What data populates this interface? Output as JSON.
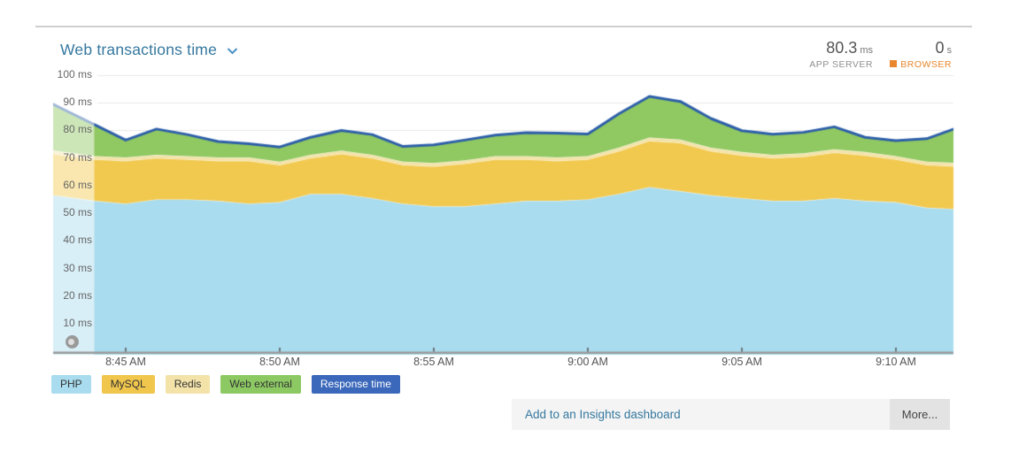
{
  "header": {
    "title": "Web transactions time",
    "stats": [
      {
        "value": "80.3",
        "unit": "ms",
        "label": "APP SERVER"
      },
      {
        "value": "0",
        "unit": "s",
        "label": "BROWSER"
      }
    ]
  },
  "chart_data": {
    "type": "area",
    "stacked": true,
    "title": "Web transactions time",
    "unit": "ms",
    "ylim": [
      0,
      100
    ],
    "grid": true,
    "y_ticks": [
      100,
      90,
      80,
      70,
      60,
      50,
      40,
      30,
      20,
      10
    ],
    "y_tick_suffix": " ms",
    "x_ticks": [
      {
        "label": "8:45 AM",
        "min": 0
      },
      {
        "label": "8:50 AM",
        "min": 5
      },
      {
        "label": "8:55 AM",
        "min": 10
      },
      {
        "label": "9:00 AM",
        "min": 15
      },
      {
        "label": "9:05 AM",
        "min": 20
      },
      {
        "label": "9:10 AM",
        "min": 25
      }
    ],
    "x_minutes_after_8_45": [
      -2,
      -1,
      0,
      1,
      2,
      3,
      4,
      5,
      6,
      7,
      8,
      9,
      10,
      11,
      12,
      13,
      14,
      15,
      16,
      17,
      18,
      19,
      20,
      21,
      22,
      23,
      24,
      25,
      26,
      27
    ],
    "series": [
      {
        "name": "PHP",
        "color": "#a9dcee",
        "values": [
          56,
          54.5,
          53.5,
          55,
          55,
          54.5,
          53.5,
          54,
          57,
          57,
          55.5,
          53.5,
          52.5,
          52.5,
          53.5,
          54.5,
          54.5,
          55,
          57,
          59.5,
          58,
          56.5,
          55.5,
          54.5,
          54.5,
          55.5,
          54.5,
          54,
          52,
          51.5
        ]
      },
      {
        "name": "MySQL",
        "color": "#f2c94f",
        "values": [
          15,
          15,
          15.5,
          15,
          14.5,
          14.5,
          15.5,
          13.5,
          13,
          14.5,
          14.5,
          14,
          14.5,
          15.5,
          16,
          15,
          14.5,
          14.5,
          15.5,
          16.7,
          17.5,
          16,
          15.5,
          15.5,
          16,
          16.5,
          16.5,
          15.5,
          15.5,
          15.5
        ]
      },
      {
        "name": "Redis",
        "color": "#f3e3a9",
        "values": [
          1.2,
          1.2,
          1.2,
          1.2,
          1.2,
          1.2,
          1.2,
          1.2,
          1.2,
          1.2,
          1.2,
          1.2,
          1.2,
          1.2,
          1.2,
          1.2,
          1.2,
          1.2,
          1.2,
          1.2,
          1.2,
          1.2,
          1.2,
          1.2,
          1.2,
          1.2,
          1.2,
          1.2,
          1.2,
          1.2
        ]
      },
      {
        "name": "Web external",
        "color": "#90c862",
        "values": [
          15.3,
          11.3,
          6.3,
          9.3,
          7.8,
          5.8,
          5.0,
          5.3,
          6.3,
          7.3,
          7.3,
          5.5,
          6.6,
          7.3,
          7.6,
          8.5,
          8.8,
          8.0,
          12.3,
          14.9,
          13.8,
          10.6,
          7.7,
          7.4,
          7.6,
          8.1,
          5.3,
          5.6,
          8.3,
          12.8
        ]
      }
    ],
    "line": {
      "name": "Response time",
      "color": "#2d5fa9",
      "values": [
        87.5,
        82,
        76.5,
        80.5,
        78.5,
        76,
        75.2,
        74,
        77.5,
        80,
        78.5,
        74.2,
        74.8,
        76.5,
        78.3,
        79.2,
        79,
        78.7,
        86,
        92.3,
        90.5,
        84.3,
        79.9,
        78.6,
        79.3,
        81.3,
        77.5,
        76.3,
        77,
        81
      ]
    },
    "summary": {
      "app_server": "80.3 ms",
      "browser": "0 s"
    }
  },
  "legend": [
    {
      "label": "PHP",
      "bg": "#a9dcee",
      "text": "#333333"
    },
    {
      "label": "MySQL",
      "bg": "#f0c64c",
      "text": "#333333"
    },
    {
      "label": "Redis",
      "bg": "#f3e3a9",
      "text": "#333333"
    },
    {
      "label": "Web external",
      "bg": "#8dc963",
      "text": "#333333"
    },
    {
      "label": "Response time",
      "bg": "#3b68bb",
      "text": "#ffffff"
    }
  ],
  "footer": {
    "insights_link": "Add to an Insights dashboard",
    "more_label": "More..."
  },
  "colors": {
    "accent_title": "#35789f",
    "browser_orange": "#e8872e",
    "axis": "#9b9b9b",
    "grid": "#e9e9e9"
  }
}
